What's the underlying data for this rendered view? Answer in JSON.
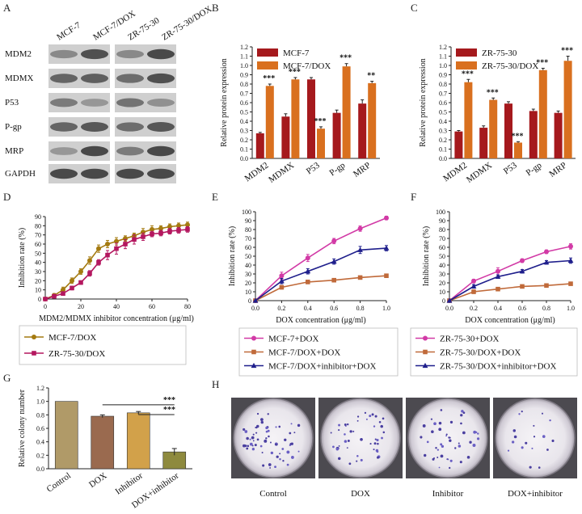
{
  "colors": {
    "dark_red": "#a5191d",
    "orange": "#d9701f",
    "gold": "#a47a10",
    "magenta": "#b4175f",
    "pink": "#d23aa6",
    "brown": "#c06a3a",
    "navy": "#1f1f8c",
    "tan": "#b09a68",
    "olive": "#8e8a3e"
  },
  "panelA": {
    "letter": "A",
    "lanes": [
      "MCF-7",
      "MCF-7/DOX",
      "ZR-75-30",
      "ZR-75-30/DOX"
    ],
    "rows": [
      "MDM2",
      "MDMX",
      "P53",
      "P-gp",
      "MRP",
      "GAPDH"
    ]
  },
  "panelH": {
    "letter": "H",
    "labels": [
      "Control",
      "DOX",
      "Inhibitor",
      "DOX+inhibitor"
    ]
  },
  "chart_data": [
    {
      "id": "B",
      "type": "bar",
      "title": "",
      "categories": [
        "MDM2",
        "MDMX",
        "P53",
        "P-gp",
        "MRP"
      ],
      "ylabel": "Relative protein expression",
      "ylim": [
        0,
        1.2
      ],
      "yticks": [
        "0.0",
        "0.1",
        "0.2",
        "0.3",
        "0.4",
        "0.5",
        "0.6",
        "0.7",
        "0.8",
        "0.9",
        "1.0",
        "1.1",
        "1.2"
      ],
      "legend": "top-left",
      "series": [
        {
          "name": "MCF-7",
          "values": [
            0.27,
            0.45,
            0.85,
            0.49,
            0.59
          ],
          "errors": [
            0.01,
            0.03,
            0.02,
            0.03,
            0.04
          ]
        },
        {
          "name": "MCF-7/DOX",
          "values": [
            0.78,
            0.85,
            0.32,
            0.99,
            0.81
          ],
          "errors": [
            0.02,
            0.02,
            0.02,
            0.03,
            0.02
          ]
        }
      ],
      "annotations": [
        "***",
        "***",
        "***",
        "***",
        "**"
      ]
    },
    {
      "id": "C",
      "type": "bar",
      "title": "",
      "categories": [
        "MDM2",
        "MDMX",
        "P53",
        "P-gp",
        "MRP"
      ],
      "ylabel": "Relative protein expression",
      "ylim": [
        0,
        1.2
      ],
      "yticks": [
        "0.0",
        "0.1",
        "0.2",
        "0.3",
        "0.4",
        "0.5",
        "0.6",
        "0.7",
        "0.8",
        "0.9",
        "1.0",
        "1.1",
        "1.2"
      ],
      "legend": "top-left",
      "series": [
        {
          "name": "ZR-75-30",
          "values": [
            0.29,
            0.33,
            0.59,
            0.51,
            0.49
          ],
          "errors": [
            0.01,
            0.02,
            0.02,
            0.02,
            0.02
          ]
        },
        {
          "name": "ZR-75-30/DOX",
          "values": [
            0.82,
            0.63,
            0.17,
            0.95,
            1.05
          ],
          "errors": [
            0.03,
            0.02,
            0.01,
            0.02,
            0.05
          ]
        }
      ],
      "annotations": [
        "***",
        "***",
        "***",
        "***",
        "***"
      ]
    },
    {
      "id": "D",
      "type": "line",
      "title": "",
      "xlabel": "MDM2/MDMX inhibitor concentration (μg/ml)",
      "ylabel": "Inhibition rate (%)",
      "xlim": [
        0,
        80
      ],
      "ylim": [
        0,
        90
      ],
      "xticks": [
        0,
        20,
        40,
        60,
        80
      ],
      "yticks": [
        0,
        10,
        20,
        30,
        40,
        50,
        60,
        70,
        80,
        90
      ],
      "x": [
        0,
        5,
        10,
        15,
        20,
        25,
        30,
        35,
        40,
        45,
        50,
        55,
        60,
        65,
        70,
        75,
        80
      ],
      "legend": "below",
      "series": [
        {
          "name": "MCF-7/DOX",
          "values": [
            0,
            4,
            10,
            20,
            30,
            42,
            55,
            60,
            63,
            66,
            69,
            73,
            76,
            77,
            79,
            80,
            81
          ],
          "errors": [
            0,
            2,
            3,
            3,
            3,
            4,
            4,
            4,
            4,
            3,
            3,
            4,
            4,
            3,
            3,
            3,
            3
          ]
        },
        {
          "name": "ZR-75-30/DOX",
          "values": [
            0,
            3,
            6,
            12,
            18,
            28,
            40,
            48,
            55,
            60,
            65,
            68,
            71,
            72,
            74,
            75,
            76
          ],
          "errors": [
            0,
            2,
            2,
            2,
            2,
            3,
            3,
            5,
            6,
            5,
            5,
            4,
            3,
            3,
            3,
            3,
            3
          ]
        }
      ]
    },
    {
      "id": "E",
      "type": "line",
      "title": "",
      "xlabel": "DOX concentration (μg/ml)",
      "ylabel": "Inhibition rate (%)",
      "xlim": [
        0,
        1.0
      ],
      "ylim": [
        0,
        100
      ],
      "xticks": [
        "0.0",
        "0.2",
        "0.4",
        "0.6",
        "0.8",
        "1.0"
      ],
      "yticks": [
        0,
        10,
        20,
        30,
        40,
        50,
        60,
        70,
        80,
        90,
        100
      ],
      "x": [
        0,
        0.2,
        0.4,
        0.6,
        0.8,
        1.0
      ],
      "legend": "below",
      "series": [
        {
          "name": "MCF-7+DOX",
          "values": [
            0,
            28,
            48,
            67,
            81,
            93
          ],
          "errors": [
            0,
            4,
            4,
            3,
            3,
            2
          ]
        },
        {
          "name": "MCF-7/DOX+DOX",
          "values": [
            0,
            15,
            21,
            23,
            26,
            28
          ],
          "errors": [
            0,
            2,
            2,
            2,
            1,
            1
          ]
        },
        {
          "name": "MCF-7/DOX+inhibitor+DOX",
          "values": [
            0,
            22,
            33,
            44,
            57,
            59
          ],
          "errors": [
            0,
            3,
            3,
            3,
            4,
            3
          ]
        }
      ]
    },
    {
      "id": "F",
      "type": "line",
      "title": "",
      "xlabel": "DOX concentration (μg/ml)",
      "ylabel": "Inhibition rate (%)",
      "xlim": [
        0,
        1.0
      ],
      "ylim": [
        0,
        100
      ],
      "xticks": [
        "0.0",
        "0.2",
        "0.4",
        "0.6",
        "0.8",
        "1.0"
      ],
      "yticks": [
        0,
        10,
        20,
        30,
        40,
        50,
        60,
        70,
        80,
        90,
        100
      ],
      "x": [
        0,
        0.2,
        0.4,
        0.6,
        0.8,
        1.0
      ],
      "legend": "below",
      "series": [
        {
          "name": "ZR-75-30+DOX",
          "values": [
            0,
            22,
            33,
            45,
            55,
            61
          ],
          "errors": [
            0,
            2,
            4,
            2,
            2,
            3
          ]
        },
        {
          "name": "ZR-75-30/DOX+DOX",
          "values": [
            0,
            10,
            13,
            16,
            17,
            19
          ],
          "errors": [
            0,
            2,
            2,
            1,
            1,
            1
          ]
        },
        {
          "name": "ZR-75-30/DOX+inhibitor+DOX",
          "values": [
            0,
            16,
            27,
            33,
            43,
            45
          ],
          "errors": [
            0,
            2,
            2,
            2,
            2,
            3
          ]
        }
      ]
    },
    {
      "id": "G",
      "type": "bar",
      "title": "",
      "categories": [
        "Control",
        "DOX",
        "Inhibitor",
        "DOX+inhibitor"
      ],
      "ylabel": "Relative colony number",
      "ylim": [
        0,
        1.2
      ],
      "yticks": [
        "0.0",
        "0.2",
        "0.4",
        "0.6",
        "0.8",
        "1.0",
        "1.2"
      ],
      "values": [
        1.0,
        0.78,
        0.83,
        0.25
      ],
      "errors": [
        0.0,
        0.02,
        0.02,
        0.05
      ],
      "annotations": [
        "***",
        "***"
      ]
    }
  ]
}
